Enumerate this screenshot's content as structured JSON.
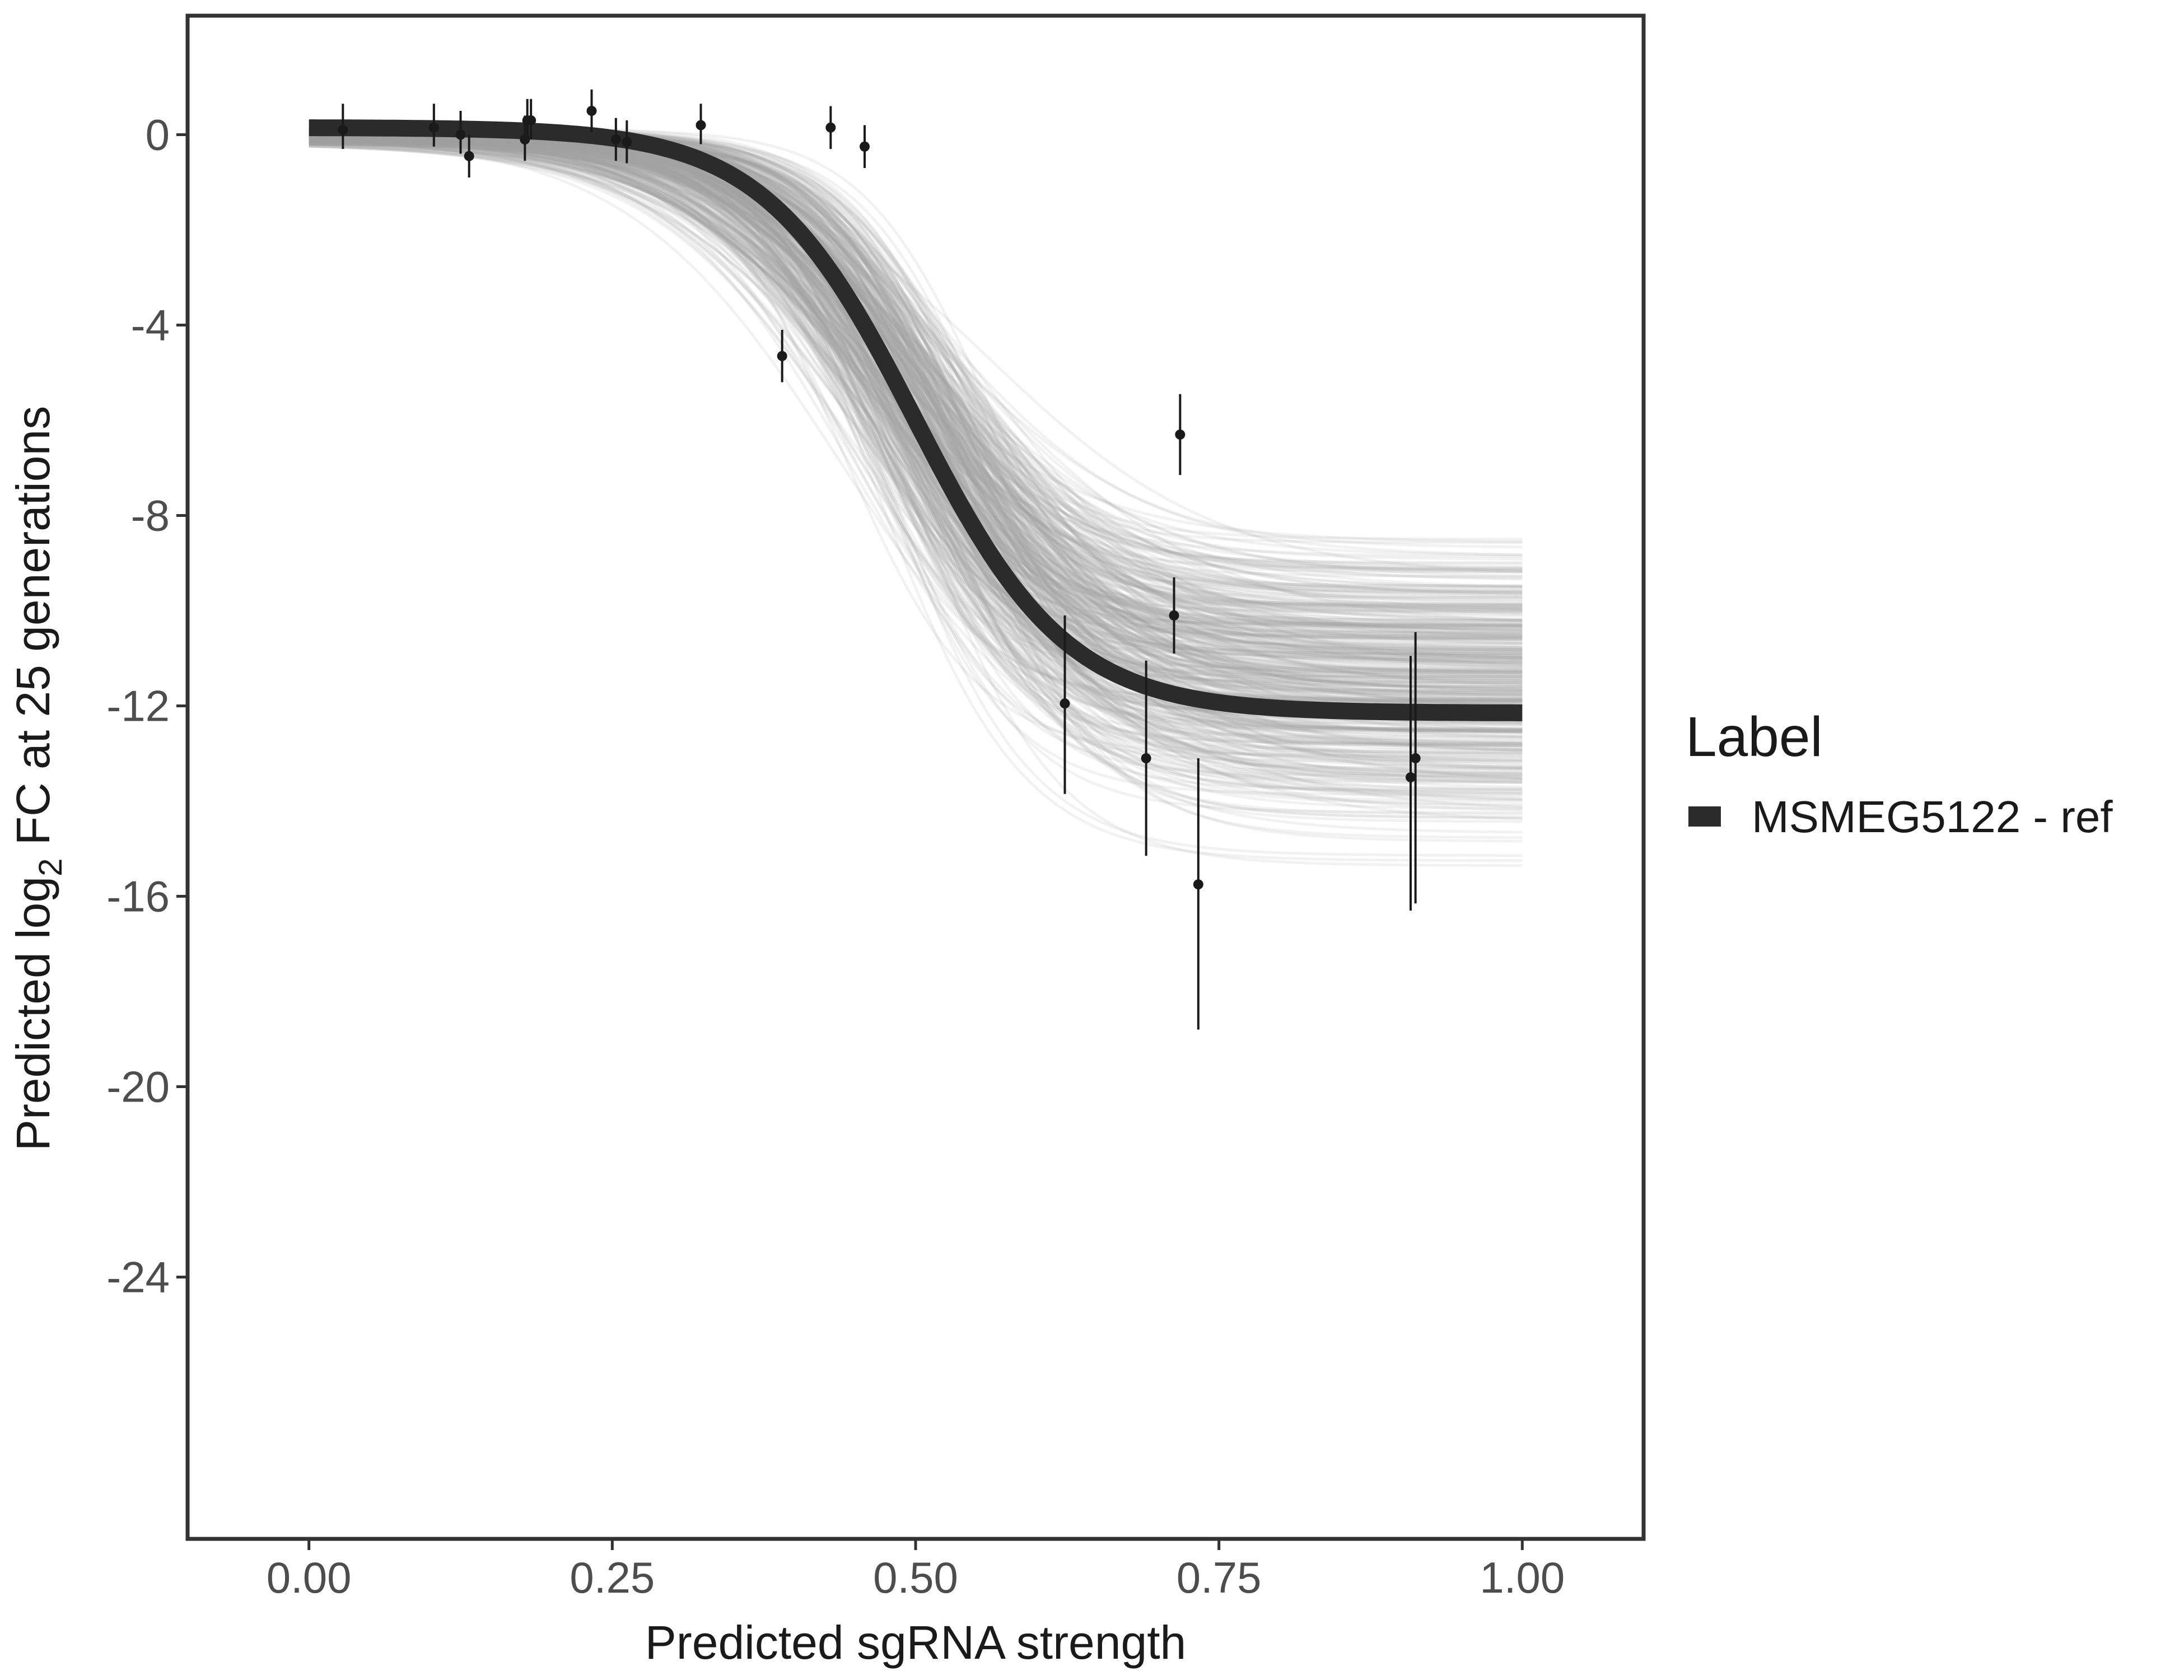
{
  "chart_data": {
    "type": "line",
    "xlabel": "Predicted sgRNA strength",
    "ylabel": {
      "prefix": "Predicted  log",
      "subscript": "2",
      "suffix": " FC at 25 generations"
    },
    "xlim": [
      -0.1,
      1.1
    ],
    "ylim": [
      -29.5,
      2.5
    ],
    "x_ticks": [
      0.0,
      0.25,
      0.5,
      0.75,
      1.0
    ],
    "x_tick_labels": [
      "0.00",
      "0.25",
      "0.50",
      "0.75",
      "1.00"
    ],
    "y_ticks": [
      0,
      -4,
      -8,
      -12,
      -16,
      -20,
      -24
    ],
    "y_tick_labels": [
      "0",
      "-4",
      "-8",
      "-12",
      "-16",
      "-20",
      "-24"
    ],
    "grid": false,
    "legend": {
      "title": "Label",
      "position": "right",
      "entries": [
        {
          "label": "MSMEG5122 - ref",
          "color": "#2b2b2b"
        }
      ]
    },
    "fitted_curve": {
      "name": "MSMEG5122 - ref",
      "color": "#2b2b2b",
      "top": 0.15,
      "bottom": -12.15,
      "midpoint": 0.5,
      "slope": 16
    },
    "posterior_draws": {
      "count": 450,
      "color": "#a6a6a6",
      "bottom_range": [
        -15.8,
        -7.6
      ],
      "midpoint_range": [
        0.43,
        0.57
      ],
      "slope_range": [
        10,
        20
      ]
    },
    "points": [
      {
        "x": 0.028,
        "y": 0.1,
        "lo": -0.3,
        "hi": 0.65
      },
      {
        "x": 0.103,
        "y": 0.15,
        "lo": -0.25,
        "hi": 0.65
      },
      {
        "x": 0.125,
        "y": 0.0,
        "lo": -0.4,
        "hi": 0.5
      },
      {
        "x": 0.132,
        "y": -0.45,
        "lo": -0.9,
        "hi": 0.0
      },
      {
        "x": 0.178,
        "y": -0.1,
        "lo": -0.55,
        "hi": 0.4
      },
      {
        "x": 0.18,
        "y": 0.3,
        "lo": -0.15,
        "hi": 0.75
      },
      {
        "x": 0.183,
        "y": 0.3,
        "lo": -0.1,
        "hi": 0.75
      },
      {
        "x": 0.233,
        "y": 0.5,
        "lo": 0.05,
        "hi": 0.95
      },
      {
        "x": 0.253,
        "y": -0.1,
        "lo": -0.55,
        "hi": 0.35
      },
      {
        "x": 0.262,
        "y": -0.15,
        "lo": -0.6,
        "hi": 0.3
      },
      {
        "x": 0.323,
        "y": 0.2,
        "lo": -0.2,
        "hi": 0.65
      },
      {
        "x": 0.39,
        "y": -4.65,
        "lo": -5.2,
        "hi": -4.1
      },
      {
        "x": 0.43,
        "y": 0.15,
        "lo": -0.3,
        "hi": 0.6
      },
      {
        "x": 0.458,
        "y": -0.25,
        "lo": -0.7,
        "hi": 0.2
      },
      {
        "x": 0.623,
        "y": -11.95,
        "lo": -13.85,
        "hi": -10.1
      },
      {
        "x": 0.69,
        "y": -13.1,
        "lo": -15.15,
        "hi": -11.05
      },
      {
        "x": 0.713,
        "y": -10.1,
        "lo": -10.9,
        "hi": -9.3
      },
      {
        "x": 0.718,
        "y": -6.3,
        "lo": -7.15,
        "hi": -5.45
      },
      {
        "x": 0.733,
        "y": -15.75,
        "lo": -18.8,
        "hi": -13.1
      },
      {
        "x": 0.908,
        "y": -13.5,
        "lo": -16.3,
        "hi": -10.95
      },
      {
        "x": 0.912,
        "y": -13.1,
        "lo": -16.15,
        "hi": -10.45
      }
    ]
  }
}
